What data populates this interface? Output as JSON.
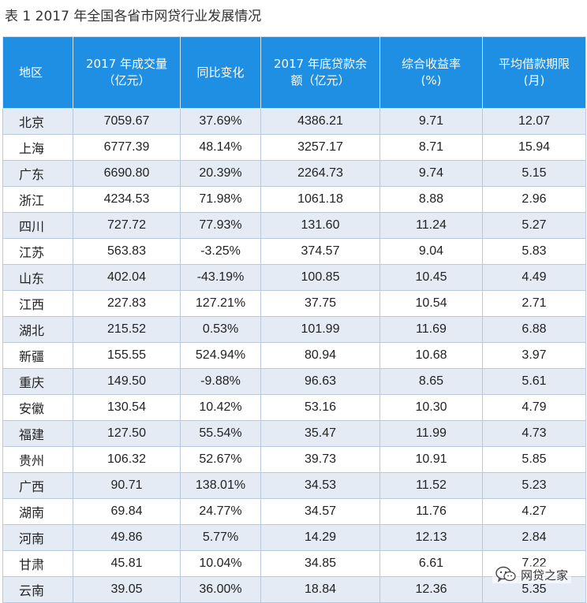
{
  "title": "表 1 2017 年全国各省市网贷行业发展情况",
  "headers": [
    "地区",
    "2017 年成交量\n（亿元）",
    "同比变化",
    "2017 年底贷款余\n额（亿元）",
    "综合收益率\n(%)",
    "平均借款期限\n(月)"
  ],
  "rows": [
    [
      "北京",
      "7059.67",
      "37.69%",
      "4386.21",
      "9.71",
      "12.07"
    ],
    [
      "上海",
      "6777.39",
      "48.14%",
      "3257.17",
      "8.71",
      "15.94"
    ],
    [
      "广东",
      "6690.80",
      "20.39%",
      "2264.73",
      "9.74",
      "5.15"
    ],
    [
      "浙江",
      "4234.53",
      "71.98%",
      "1061.18",
      "8.88",
      "2.96"
    ],
    [
      "四川",
      "727.72",
      "77.93%",
      "131.60",
      "11.24",
      "5.27"
    ],
    [
      "江苏",
      "563.83",
      "-3.25%",
      "374.57",
      "9.04",
      "5.83"
    ],
    [
      "山东",
      "402.04",
      "-43.19%",
      "100.85",
      "10.45",
      "4.49"
    ],
    [
      "江西",
      "227.83",
      "127.21%",
      "37.75",
      "10.54",
      "2.71"
    ],
    [
      "湖北",
      "215.52",
      "0.53%",
      "101.99",
      "11.69",
      "6.88"
    ],
    [
      "新疆",
      "155.55",
      "524.94%",
      "80.94",
      "10.68",
      "3.97"
    ],
    [
      "重庆",
      "149.50",
      "-9.88%",
      "96.63",
      "8.65",
      "5.61"
    ],
    [
      "安徽",
      "130.54",
      "10.42%",
      "53.16",
      "10.30",
      "4.79"
    ],
    [
      "福建",
      "127.50",
      "55.54%",
      "35.47",
      "11.99",
      "4.73"
    ],
    [
      "贵州",
      "106.32",
      "52.67%",
      "39.73",
      "10.91",
      "5.85"
    ],
    [
      "广西",
      "90.71",
      "138.01%",
      "34.53",
      "11.52",
      "5.23"
    ],
    [
      "湖南",
      "69.84",
      "24.77%",
      "34.57",
      "11.76",
      "4.27"
    ],
    [
      "河南",
      "49.86",
      "5.77%",
      "14.29",
      "12.13",
      "2.84"
    ],
    [
      "甘肃",
      "45.81",
      "10.04%",
      "34.85",
      "6.61",
      "7.22"
    ],
    [
      "云南",
      "39.05",
      "36.00%",
      "18.84",
      "12.36",
      "5.35"
    ]
  ],
  "watermark": {
    "text": "网贷之家",
    "icon": "wechat-icon"
  }
}
